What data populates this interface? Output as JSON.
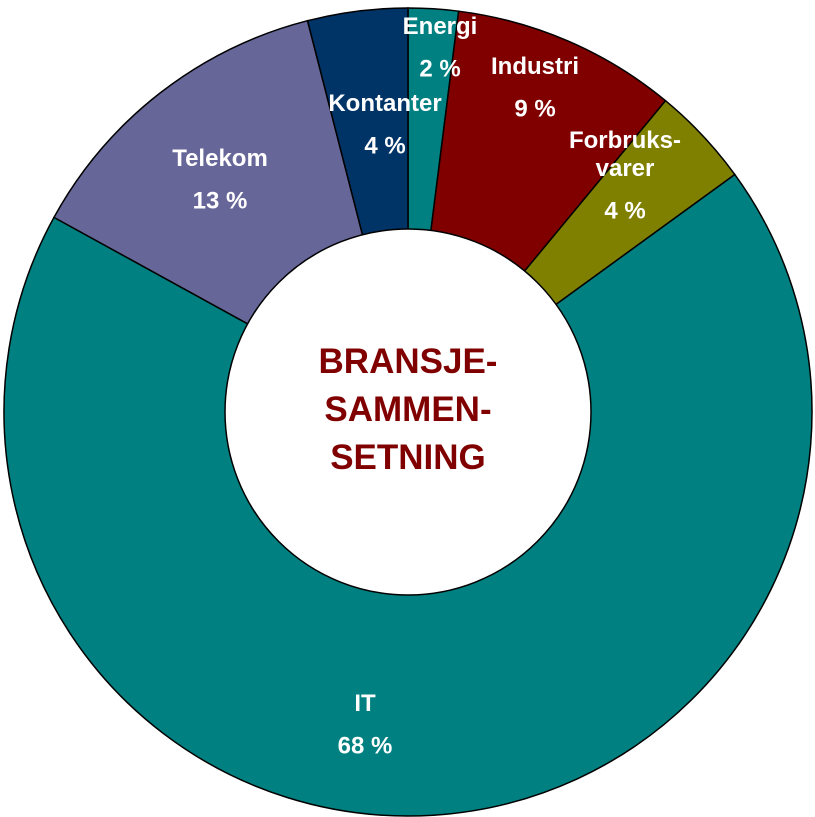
{
  "chart_data": {
    "type": "donut",
    "title": "BRANSJE-\nSAMMEN-\nSETNING",
    "categories": [
      "Energi",
      "Industri",
      "Forbruks-\nvarer",
      "IT",
      "Telekom",
      "Kontanter"
    ],
    "values": [
      2,
      9,
      4,
      68,
      13,
      4
    ],
    "value_labels": [
      "2 %",
      "9 %",
      "4 %",
      "68 %",
      "13 %",
      "4 %"
    ],
    "colors": [
      "#008080",
      "#800000",
      "#808000",
      "#008080",
      "#666699",
      "#003366"
    ]
  }
}
